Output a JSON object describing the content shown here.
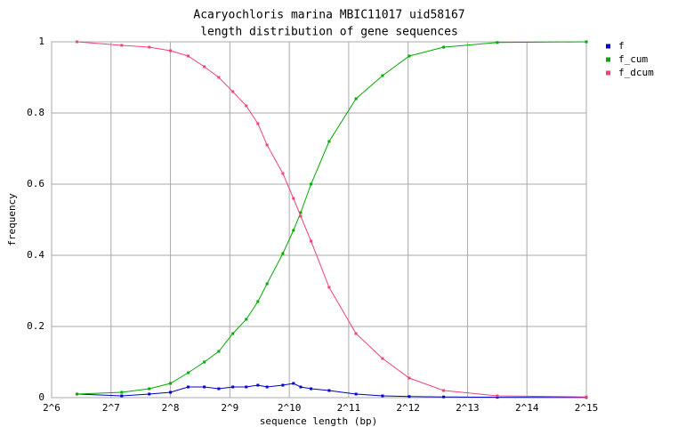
{
  "chart_data": {
    "type": "line",
    "title": "Acaryochloris marina MBIC11017 uid58167",
    "subtitle": "length distribution of gene sequences",
    "x_label": "sequence length (bp)",
    "y_label": "frequency",
    "x_scale": "log2",
    "grid": true,
    "legend_position": "right",
    "x": [
      86,
      145,
      200,
      256,
      315,
      380,
      450,
      530,
      620,
      710,
      790,
      950,
      1075,
      1170,
      1320,
      1630,
      2230,
      3040,
      4150,
      6200,
      11600,
      32768
    ],
    "series": [
      {
        "name": "f",
        "color": "#0000cc",
        "values": [
          0.01,
          0.005,
          0.01,
          0.015,
          0.03,
          0.03,
          0.025,
          0.03,
          0.03,
          0.035,
          0.03,
          0.035,
          0.04,
          0.03,
          0.025,
          0.02,
          0.01,
          0.005,
          0.003,
          0.002,
          0.001,
          0.0005
        ]
      },
      {
        "name": "f_cum",
        "color": "#00aa00",
        "values": [
          0.01,
          0.015,
          0.025,
          0.04,
          0.07,
          0.1,
          0.13,
          0.18,
          0.22,
          0.27,
          0.32,
          0.405,
          0.47,
          0.52,
          0.6,
          0.72,
          0.84,
          0.905,
          0.96,
          0.985,
          0.998,
          1
        ]
      },
      {
        "name": "f_dcum",
        "color": "#ee4477",
        "values": [
          1,
          0.99,
          0.985,
          0.975,
          0.96,
          0.93,
          0.9,
          0.86,
          0.82,
          0.77,
          0.71,
          0.63,
          0.56,
          0.51,
          0.44,
          0.31,
          0.18,
          0.11,
          0.055,
          0.02,
          0.005,
          0.002
        ]
      }
    ],
    "xlim": [
      64,
      32768
    ],
    "xticks": [
      {
        "value": 64,
        "label": "2^6"
      },
      {
        "value": 128,
        "label": "2^7"
      },
      {
        "value": 256,
        "label": "2^8"
      },
      {
        "value": 512,
        "label": "2^9"
      },
      {
        "value": 1024,
        "label": "2^10"
      },
      {
        "value": 2048,
        "label": "2^11"
      },
      {
        "value": 4096,
        "label": "2^12"
      },
      {
        "value": 8192,
        "label": "2^13"
      },
      {
        "value": 16384,
        "label": "2^14"
      },
      {
        "value": 32768,
        "label": "2^15"
      }
    ],
    "ylim": [
      0,
      1
    ],
    "yticks": [
      0,
      0.2,
      0.4,
      0.6,
      0.8,
      1
    ]
  }
}
